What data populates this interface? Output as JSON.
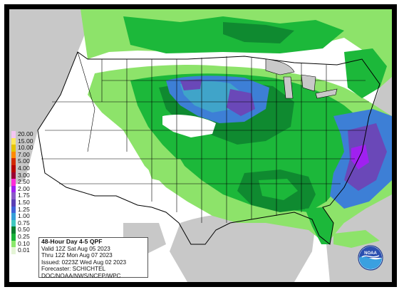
{
  "map": {
    "title": "48-Hour Day 4-5 QPF",
    "valid_line": "Valid 12Z Sat Aug 05 2023",
    "thru_line": "Thru 12Z Mon Aug 07 2023",
    "issued_line": "Issued: 0223Z Wed Aug 02 2023",
    "forecaster_line": "Forecaster: SCHICHTEL",
    "source_line": "DOC/NOAA/NWS/NCEP/WPC",
    "logo_text": "NOAA"
  },
  "legend": {
    "items": [
      {
        "label": "20.00",
        "color": "#f4c6f2"
      },
      {
        "label": "15.00",
        "color": "#fde85a"
      },
      {
        "label": "10.00",
        "color": "#e6c300"
      },
      {
        "label": "7.00",
        "color": "#ff8a00"
      },
      {
        "label": "5.00",
        "color": "#d22a00"
      },
      {
        "label": "4.00",
        "color": "#b80000"
      },
      {
        "label": "3.00",
        "color": "#990033"
      },
      {
        "label": "2.50",
        "color": "#ff2bd8"
      },
      {
        "label": "2.00",
        "color": "#a020f0"
      },
      {
        "label": "1.75",
        "color": "#8a5ac8"
      },
      {
        "label": "1.50",
        "color": "#5b3fb5"
      },
      {
        "label": "1.25",
        "color": "#3f62d8"
      },
      {
        "label": "1.00",
        "color": "#35a0d8"
      },
      {
        "label": "0.75",
        "color": "#40c8c0"
      },
      {
        "label": "0.50",
        "color": "#0b7d2e"
      },
      {
        "label": "0.25",
        "color": "#17b238"
      },
      {
        "label": "0.10",
        "color": "#8be86c"
      },
      {
        "label": "0.01",
        "color": "#e4f4d6"
      }
    ]
  },
  "colors": {
    "land": "#ffffff",
    "water": "#c8c8c8",
    "light_green": "#8de36a",
    "green": "#1cb83a",
    "dark_green": "#0f8a30",
    "cyan": "#43c2bf",
    "blue": "#3d7fd6",
    "purple": "#6a48b8",
    "boundary": "#000000"
  }
}
